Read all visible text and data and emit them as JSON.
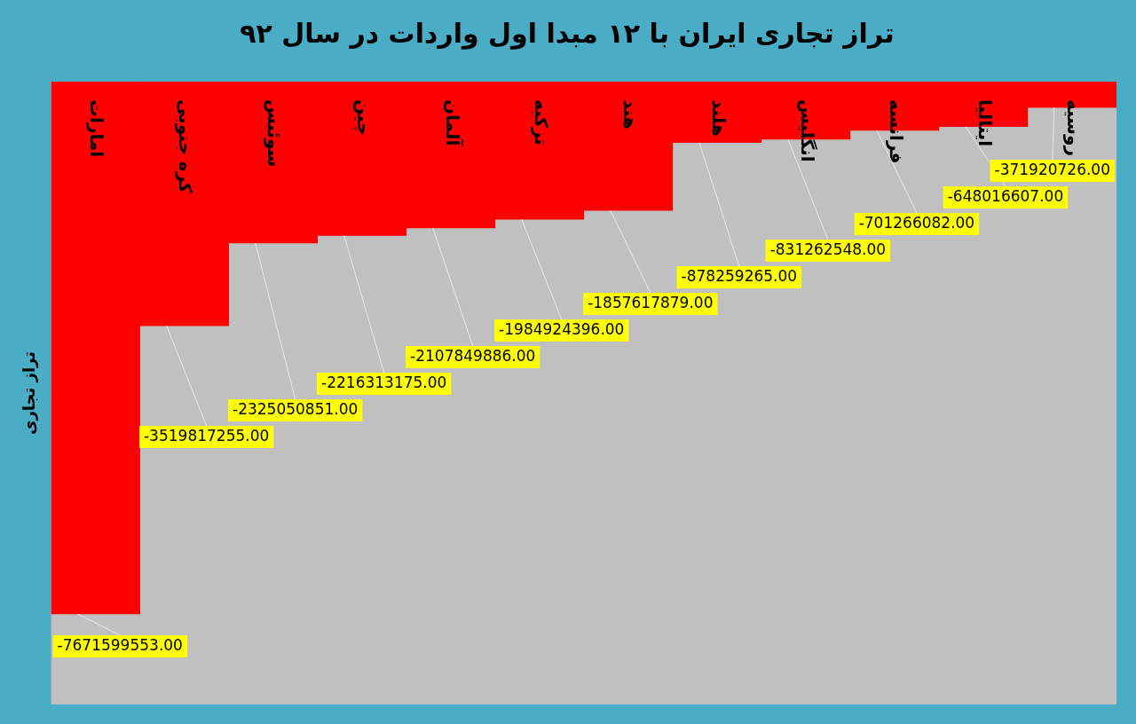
{
  "chart_data": {
    "type": "bar",
    "title": "تراز تجاری ایران با ۱۲ مبدا اول واردات در سال ۹۲",
    "ylabel": "تراز تجاری",
    "categories": [
      "امارات",
      "کره جنوبی",
      "سوئیس",
      "چین",
      "آلمان",
      "ترکیه",
      "هند",
      "هلند",
      "انگلیس",
      "فرانسه",
      "ایتالیا",
      "روسیه"
    ],
    "values": [
      -7671599553,
      -3519817255,
      -2325050851,
      -2216313175,
      -2107849886,
      -1984924396,
      -1857617879,
      -878259265,
      -831262548,
      -701266082,
      -648016607,
      -371920726
    ],
    "value_labels": [
      "-7671599553.00",
      "-3519817255.00",
      "-2325050851.00",
      "-2216313175.00",
      "-2107849886.00",
      "-1984924396.00",
      "-1857617879.00",
      "-878259265.00",
      "-831262548.00",
      "-701266082.00",
      "-648016607.00",
      "-371920726.00"
    ],
    "color": "#ff0000",
    "grid": false,
    "legend": false,
    "tick_labels": "x"
  }
}
